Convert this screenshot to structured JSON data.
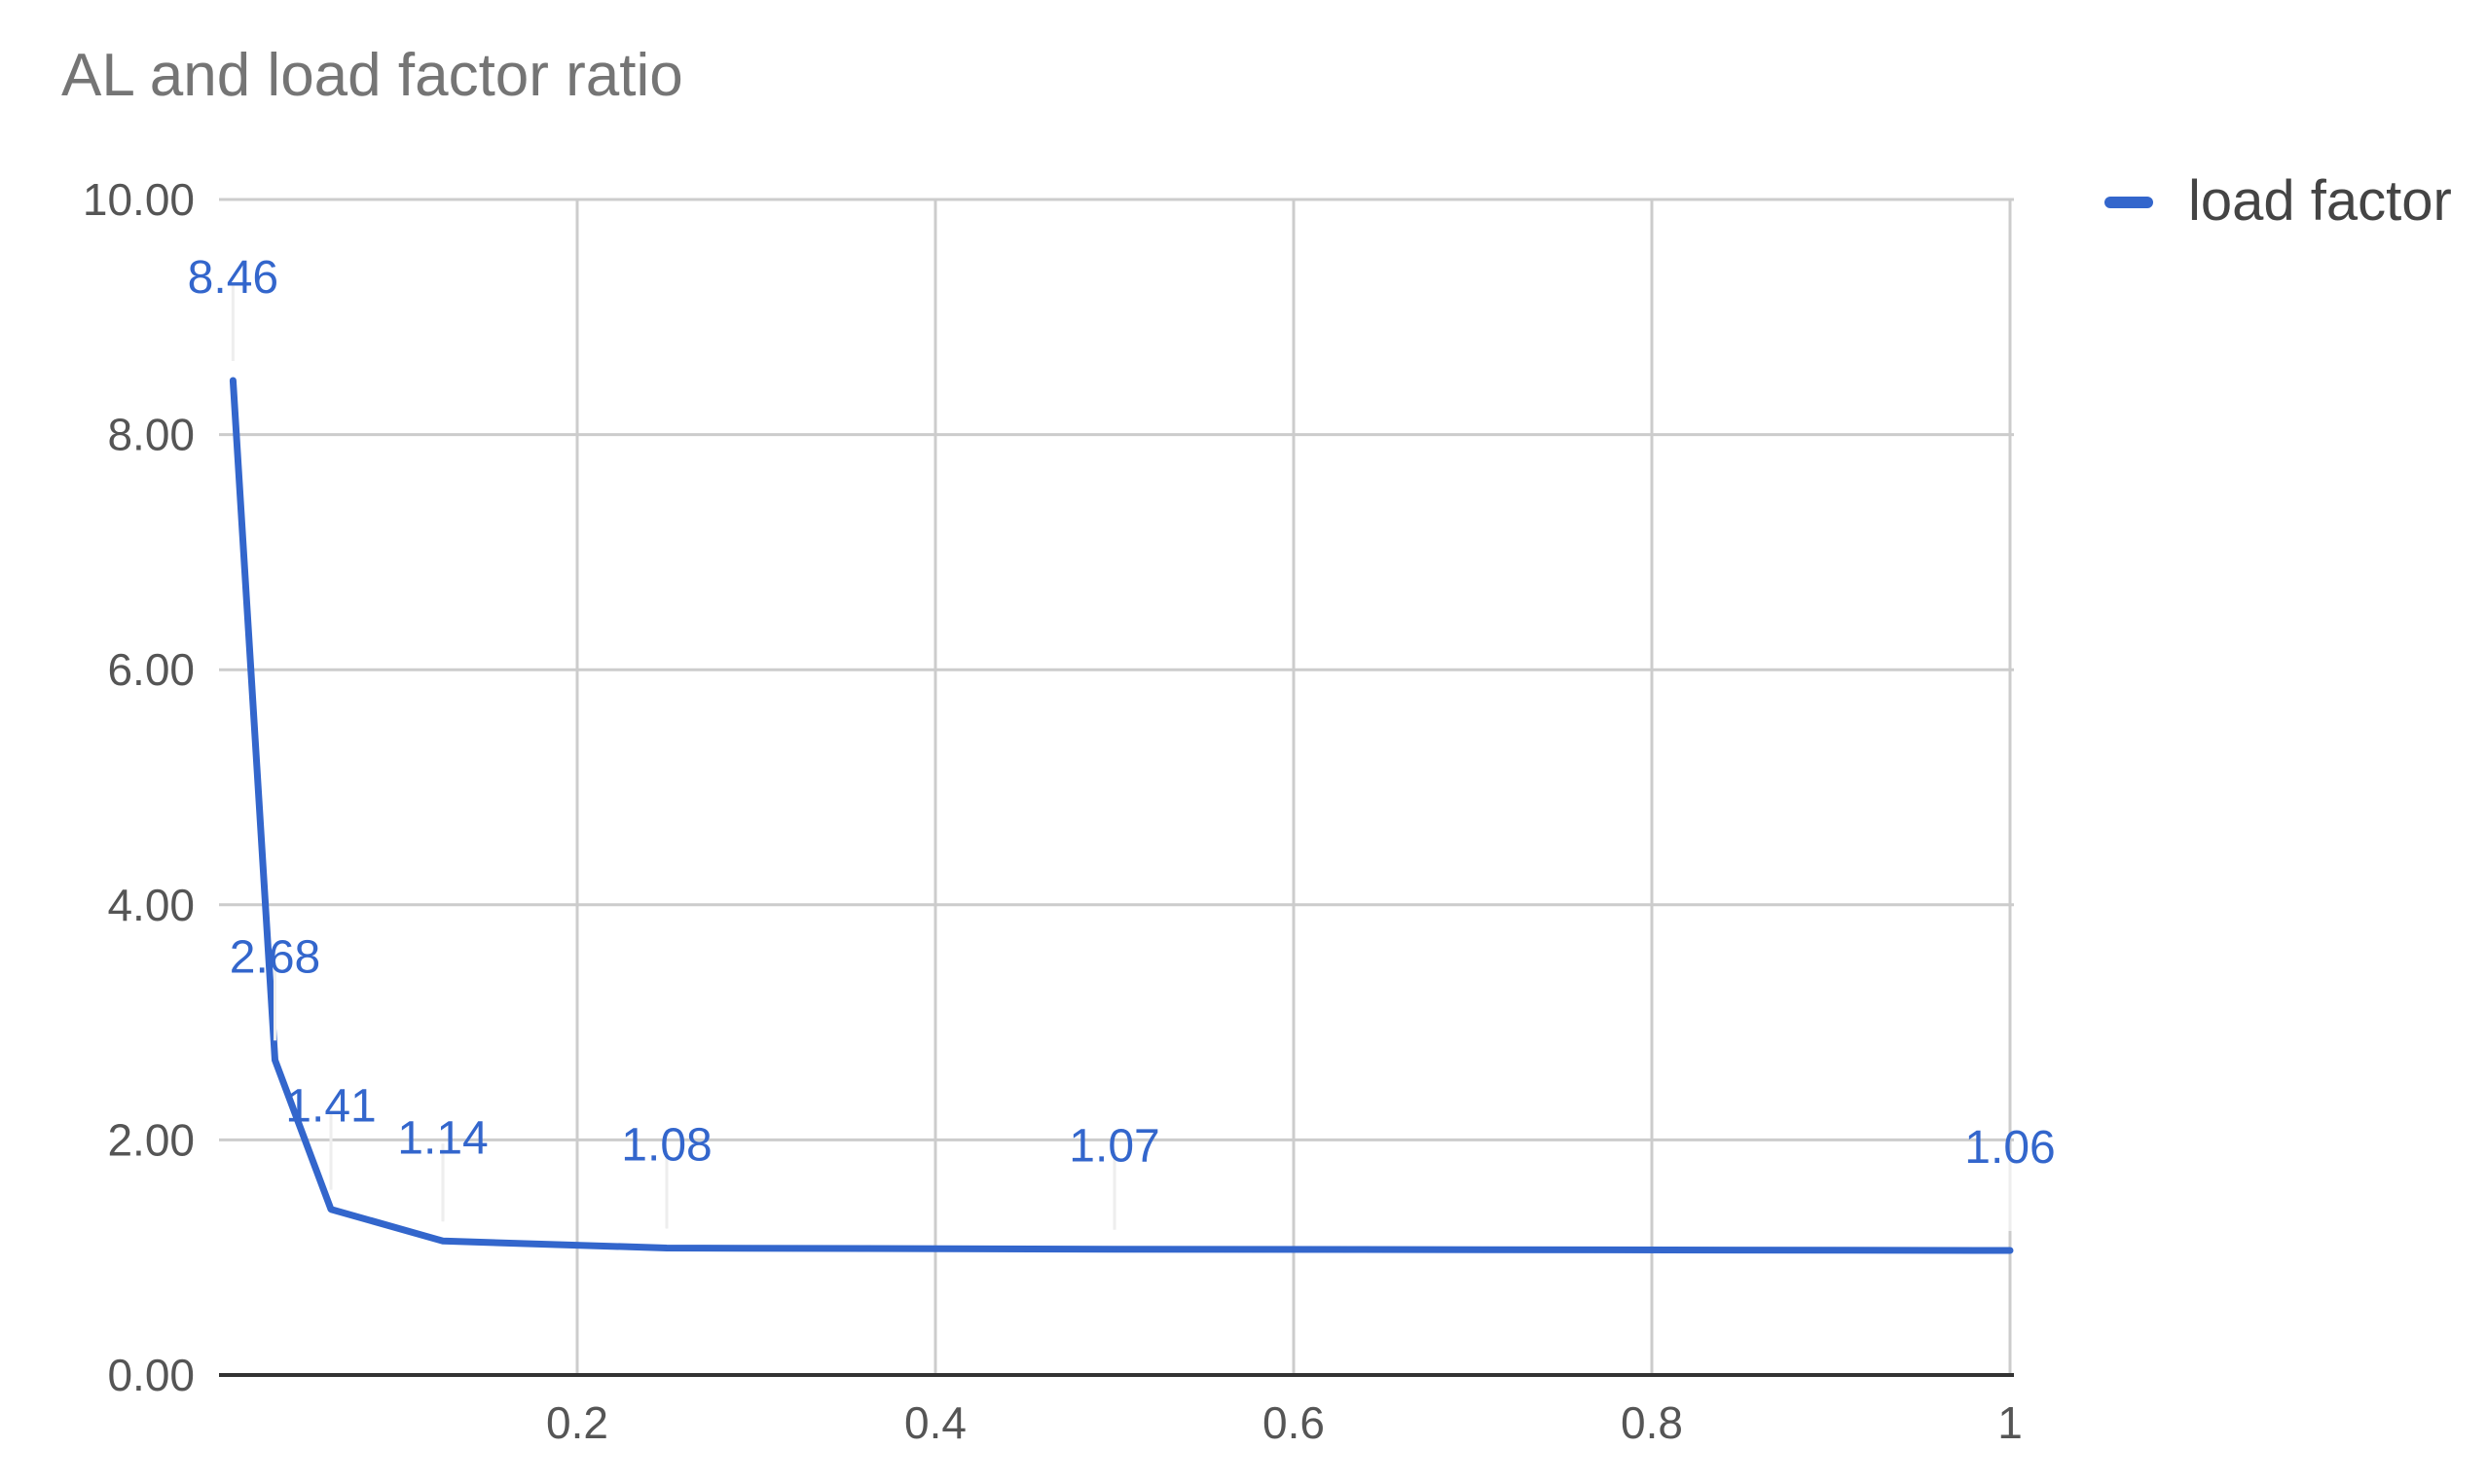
{
  "chart_data": {
    "type": "line",
    "title": "AL and load factor ratio",
    "xlabel": "",
    "ylabel": "",
    "x": [
      0.0078125,
      0.03125,
      0.0625,
      0.125,
      0.25,
      0.5,
      1
    ],
    "series": [
      {
        "name": "load factor",
        "values": [
          8.46,
          2.68,
          1.41,
          1.14,
          1.08,
          1.07,
          1.06
        ],
        "data_labels": [
          "8.46",
          "2.68",
          "1.41",
          "1.14",
          "1.08",
          "1.07",
          "1.06"
        ],
        "color": "#3366cc"
      }
    ],
    "xlim": [
      0,
      1
    ],
    "ylim": [
      0,
      10
    ],
    "xticks": [
      0.2,
      0.4,
      0.6,
      0.8,
      1
    ],
    "xtick_labels": [
      "0.2",
      "0.4",
      "0.6",
      "0.8",
      "1"
    ],
    "yticks": [
      0,
      2,
      4,
      6,
      8,
      10
    ],
    "ytick_labels": [
      "0.00",
      "2.00",
      "4.00",
      "6.00",
      "8.00",
      "10.00"
    ],
    "grid": true,
    "legend_position": "top-right"
  },
  "colors": {
    "series": "#3366cc",
    "grid": "#cccccc",
    "axis": "#333333"
  }
}
